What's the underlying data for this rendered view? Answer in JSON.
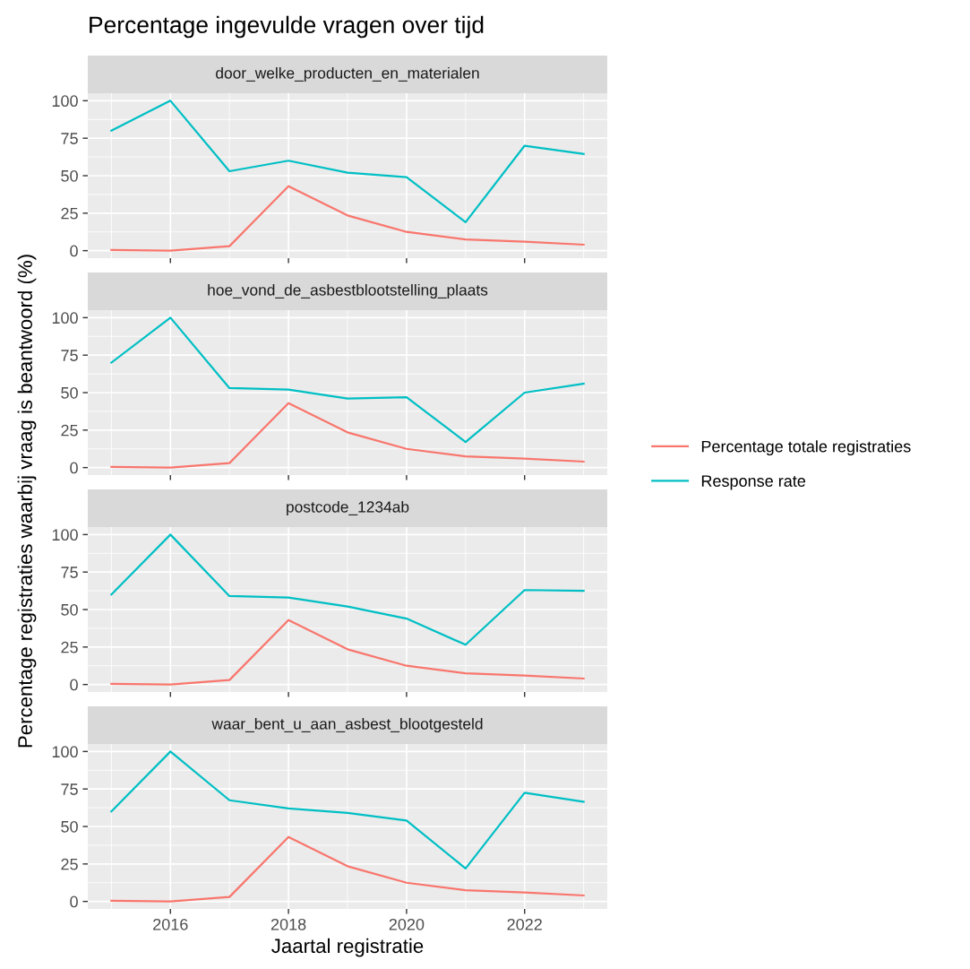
{
  "chart_data": [
    {
      "type": "line",
      "title": "Percentage ingevulde vragen over tijd",
      "subtitle": "door_welke_producten_en_materialen",
      "ylabel": "Percentage registraties waarbij vraag is beantwoord (%)",
      "x": [
        2015,
        2016,
        2017,
        2018,
        2019,
        2020,
        2021,
        2022,
        2023
      ],
      "series": [
        {
          "name": "Percentage totale registraties",
          "color": "#f8766d",
          "values": [
            0.5,
            0,
            3,
            43,
            23.5,
            12.5,
            7.5,
            6,
            4
          ]
        },
        {
          "name": "Response rate",
          "color": "#00bfc4",
          "values": [
            80,
            100,
            53,
            60,
            52,
            49,
            19,
            70,
            64.5
          ]
        }
      ],
      "xlim": [
        2014.6,
        2023.4
      ],
      "xticks": [
        2016,
        2018,
        2020,
        2022
      ],
      "ylim": [
        -5,
        105
      ],
      "yticks": [
        0,
        25,
        50,
        75,
        100
      ],
      "tick_labels": "y",
      "grid": true,
      "legend": "right"
    },
    {
      "type": "line",
      "subtitle": "hoe_vond_de_asbestblootstelling_plaats",
      "x": [
        2015,
        2016,
        2017,
        2018,
        2019,
        2020,
        2021,
        2022,
        2023
      ],
      "series": [
        {
          "color": "#f8766d",
          "values": [
            0.5,
            0,
            3,
            43,
            23.5,
            12.5,
            7.5,
            6,
            4
          ]
        },
        {
          "color": "#00bfc4",
          "values": [
            70,
            100,
            53,
            52,
            46,
            47,
            17,
            50,
            56
          ]
        }
      ],
      "xlim": [
        2014.6,
        2023.4
      ],
      "xticks": [
        2016,
        2018,
        2020,
        2022
      ],
      "ylim": [
        -5,
        105
      ],
      "yticks": [
        0,
        25,
        50,
        75,
        100
      ],
      "tick_labels": "y",
      "grid": true
    },
    {
      "type": "line",
      "subtitle": "postcode_1234ab",
      "x": [
        2015,
        2016,
        2017,
        2018,
        2019,
        2020,
        2021,
        2022,
        2023
      ],
      "series": [
        {
          "color": "#f8766d",
          "values": [
            0.5,
            0,
            3,
            43,
            23.5,
            12.5,
            7.5,
            6,
            4
          ]
        },
        {
          "color": "#00bfc4",
          "values": [
            60,
            100,
            59,
            58,
            52,
            44,
            26.5,
            63,
            62.5
          ]
        }
      ],
      "xlim": [
        2014.6,
        2023.4
      ],
      "xticks": [
        2016,
        2018,
        2020,
        2022
      ],
      "ylim": [
        -5,
        105
      ],
      "yticks": [
        0,
        25,
        50,
        75,
        100
      ],
      "tick_labels": "y",
      "grid": true
    },
    {
      "type": "line",
      "subtitle": "waar_bent_u_aan_asbest_blootgesteld",
      "xlabel": "Jaartal registratie",
      "x": [
        2015,
        2016,
        2017,
        2018,
        2019,
        2020,
        2021,
        2022,
        2023
      ],
      "series": [
        {
          "color": "#f8766d",
          "values": [
            0.5,
            0,
            3,
            43,
            23.5,
            12.5,
            7.5,
            6,
            4
          ]
        },
        {
          "color": "#00bfc4",
          "values": [
            60,
            100,
            67.5,
            62,
            59,
            54,
            22,
            72.5,
            66.5
          ]
        }
      ],
      "xlim": [
        2014.6,
        2023.4
      ],
      "xticks": [
        2016,
        2018,
        2020,
        2022
      ],
      "ylim": [
        -5,
        105
      ],
      "yticks": [
        0,
        25,
        50,
        75,
        100
      ],
      "grid": true
    }
  ]
}
